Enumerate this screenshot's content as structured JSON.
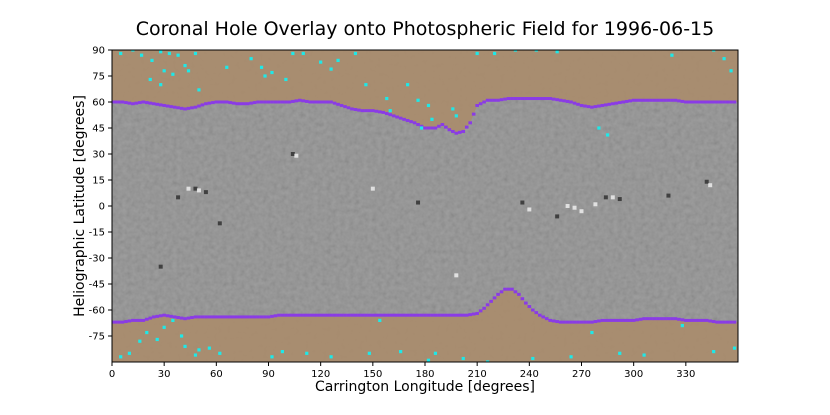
{
  "chart_data": {
    "type": "heatmap",
    "title": "Coronal Hole Overlay onto Photospheric Field for 1996-06-15",
    "xlabel": "Carrington Longitude [degrees]",
    "ylabel": "Heliographic Latitude [degrees]",
    "xlim": [
      0,
      360
    ],
    "ylim": [
      -90,
      90
    ],
    "xticks": [
      0,
      30,
      60,
      90,
      120,
      150,
      180,
      210,
      240,
      270,
      300,
      330
    ],
    "yticks": [
      90,
      75,
      60,
      45,
      30,
      15,
      0,
      -15,
      -30,
      -45,
      -60,
      -75
    ],
    "grid": false,
    "colors": {
      "background_field": "#8e8e8e",
      "coronal_hole_overlay": "#a98c6c",
      "boundary": "#8a3be6",
      "open_field_points": "#1ee8e8"
    },
    "north_hole_boundary": [
      [
        0,
        60
      ],
      [
        6,
        60
      ],
      [
        12,
        59
      ],
      [
        18,
        60
      ],
      [
        24,
        59
      ],
      [
        30,
        58
      ],
      [
        36,
        57
      ],
      [
        42,
        56
      ],
      [
        48,
        57
      ],
      [
        54,
        59
      ],
      [
        60,
        60
      ],
      [
        66,
        60
      ],
      [
        72,
        59
      ],
      [
        78,
        59
      ],
      [
        84,
        60
      ],
      [
        90,
        60
      ],
      [
        96,
        60
      ],
      [
        102,
        60
      ],
      [
        108,
        61
      ],
      [
        114,
        60
      ],
      [
        120,
        60
      ],
      [
        126,
        60
      ],
      [
        132,
        58
      ],
      [
        138,
        56
      ],
      [
        144,
        55
      ],
      [
        150,
        55
      ],
      [
        156,
        54
      ],
      [
        162,
        52
      ],
      [
        168,
        50
      ],
      [
        174,
        48
      ],
      [
        180,
        45
      ],
      [
        186,
        45
      ],
      [
        190,
        47
      ],
      [
        194,
        44
      ],
      [
        198,
        42
      ],
      [
        202,
        43
      ],
      [
        206,
        48
      ],
      [
        210,
        58
      ],
      [
        216,
        61
      ],
      [
        222,
        61
      ],
      [
        228,
        62
      ],
      [
        234,
        62
      ],
      [
        240,
        62
      ],
      [
        246,
        62
      ],
      [
        252,
        62
      ],
      [
        258,
        61
      ],
      [
        264,
        60
      ],
      [
        270,
        58
      ],
      [
        276,
        57
      ],
      [
        282,
        58
      ],
      [
        288,
        59
      ],
      [
        294,
        60
      ],
      [
        300,
        61
      ],
      [
        306,
        61
      ],
      [
        312,
        61
      ],
      [
        318,
        61
      ],
      [
        324,
        61
      ],
      [
        330,
        60
      ],
      [
        336,
        60
      ],
      [
        342,
        60
      ],
      [
        348,
        60
      ],
      [
        354,
        60
      ],
      [
        360,
        60
      ]
    ],
    "south_hole_boundary": [
      [
        0,
        -67
      ],
      [
        6,
        -67
      ],
      [
        12,
        -66
      ],
      [
        18,
        -66
      ],
      [
        24,
        -64
      ],
      [
        30,
        -63
      ],
      [
        36,
        -64
      ],
      [
        42,
        -65
      ],
      [
        48,
        -64
      ],
      [
        54,
        -64
      ],
      [
        60,
        -64
      ],
      [
        66,
        -64
      ],
      [
        72,
        -64
      ],
      [
        78,
        -64
      ],
      [
        84,
        -64
      ],
      [
        90,
        -64
      ],
      [
        96,
        -63
      ],
      [
        102,
        -63
      ],
      [
        108,
        -63
      ],
      [
        114,
        -63
      ],
      [
        120,
        -63
      ],
      [
        126,
        -63
      ],
      [
        132,
        -63
      ],
      [
        138,
        -63
      ],
      [
        144,
        -63
      ],
      [
        150,
        -63
      ],
      [
        156,
        -63
      ],
      [
        162,
        -63
      ],
      [
        168,
        -63
      ],
      [
        174,
        -63
      ],
      [
        180,
        -63
      ],
      [
        186,
        -63
      ],
      [
        192,
        -63
      ],
      [
        198,
        -63
      ],
      [
        204,
        -63
      ],
      [
        210,
        -62
      ],
      [
        214,
        -59
      ],
      [
        218,
        -55
      ],
      [
        222,
        -51
      ],
      [
        226,
        -48
      ],
      [
        230,
        -48
      ],
      [
        234,
        -51
      ],
      [
        238,
        -56
      ],
      [
        242,
        -60
      ],
      [
        246,
        -63
      ],
      [
        252,
        -66
      ],
      [
        258,
        -67
      ],
      [
        264,
        -67
      ],
      [
        270,
        -67
      ],
      [
        276,
        -67
      ],
      [
        282,
        -66
      ],
      [
        288,
        -66
      ],
      [
        294,
        -66
      ],
      [
        300,
        -66
      ],
      [
        306,
        -65
      ],
      [
        312,
        -65
      ],
      [
        318,
        -65
      ],
      [
        324,
        -65
      ],
      [
        330,
        -66
      ],
      [
        336,
        -66
      ],
      [
        342,
        -66
      ],
      [
        348,
        -67
      ],
      [
        354,
        -67
      ],
      [
        360,
        -67
      ]
    ],
    "open_field_points": [
      [
        5,
        88
      ],
      [
        12,
        90
      ],
      [
        17,
        87
      ],
      [
        23,
        84
      ],
      [
        28,
        89
      ],
      [
        33,
        88
      ],
      [
        38,
        87
      ],
      [
        42,
        81
      ],
      [
        44,
        78
      ],
      [
        30,
        78
      ],
      [
        35,
        76
      ],
      [
        28,
        70
      ],
      [
        22,
        73
      ],
      [
        48,
        88
      ],
      [
        50,
        67
      ],
      [
        66,
        80
      ],
      [
        80,
        85
      ],
      [
        86,
        80
      ],
      [
        88,
        75
      ],
      [
        92,
        77
      ],
      [
        100,
        73
      ],
      [
        104,
        88
      ],
      [
        110,
        88
      ],
      [
        120,
        83
      ],
      [
        126,
        79
      ],
      [
        130,
        84
      ],
      [
        140,
        88
      ],
      [
        146,
        70
      ],
      [
        158,
        62
      ],
      [
        160,
        55
      ],
      [
        170,
        70
      ],
      [
        176,
        61
      ],
      [
        182,
        58
      ],
      [
        184,
        50
      ],
      [
        178,
        45
      ],
      [
        196,
        56
      ],
      [
        198,
        52
      ],
      [
        210,
        88
      ],
      [
        220,
        88
      ],
      [
        232,
        90
      ],
      [
        244,
        90
      ],
      [
        256,
        89
      ],
      [
        280,
        45
      ],
      [
        285,
        41
      ],
      [
        322,
        87
      ],
      [
        346,
        90
      ],
      [
        352,
        85
      ],
      [
        356,
        78
      ],
      [
        5,
        -87
      ],
      [
        10,
        -85
      ],
      [
        16,
        -78
      ],
      [
        20,
        -73
      ],
      [
        26,
        -77
      ],
      [
        30,
        -70
      ],
      [
        35,
        -66
      ],
      [
        40,
        -75
      ],
      [
        42,
        -81
      ],
      [
        48,
        -86
      ],
      [
        50,
        -83
      ],
      [
        56,
        -82
      ],
      [
        62,
        -85
      ],
      [
        92,
        -87
      ],
      [
        98,
        -84
      ],
      [
        112,
        -85
      ],
      [
        126,
        -87
      ],
      [
        148,
        -85
      ],
      [
        154,
        -66
      ],
      [
        166,
        -84
      ],
      [
        182,
        -89
      ],
      [
        186,
        -85
      ],
      [
        202,
        -88
      ],
      [
        216,
        -90
      ],
      [
        242,
        -88
      ],
      [
        264,
        -87
      ],
      [
        276,
        -73
      ],
      [
        292,
        -85
      ],
      [
        306,
        -86
      ],
      [
        328,
        -69
      ],
      [
        346,
        -84
      ],
      [
        358,
        -82
      ]
    ],
    "magnetic_features": [
      [
        44,
        10,
        1
      ],
      [
        48,
        10,
        -1
      ],
      [
        50,
        9,
        1
      ],
      [
        54,
        8,
        -1
      ],
      [
        38,
        5,
        -1
      ],
      [
        104,
        30,
        -1
      ],
      [
        106,
        29,
        1
      ],
      [
        176,
        2,
        -1
      ],
      [
        236,
        2,
        -1
      ],
      [
        240,
        -2,
        1
      ],
      [
        262,
        0,
        1
      ],
      [
        266,
        -1,
        1
      ],
      [
        270,
        -3,
        1
      ],
      [
        256,
        -6,
        -1
      ],
      [
        284,
        5,
        -1
      ],
      [
        288,
        5,
        1
      ],
      [
        292,
        4,
        -1
      ],
      [
        278,
        1,
        1
      ],
      [
        320,
        6,
        -1
      ],
      [
        342,
        14,
        -1
      ],
      [
        344,
        12,
        1
      ],
      [
        28,
        -35,
        -1
      ],
      [
        150,
        10,
        1
      ],
      [
        198,
        -40,
        1
      ],
      [
        62,
        -10,
        -1
      ]
    ]
  }
}
